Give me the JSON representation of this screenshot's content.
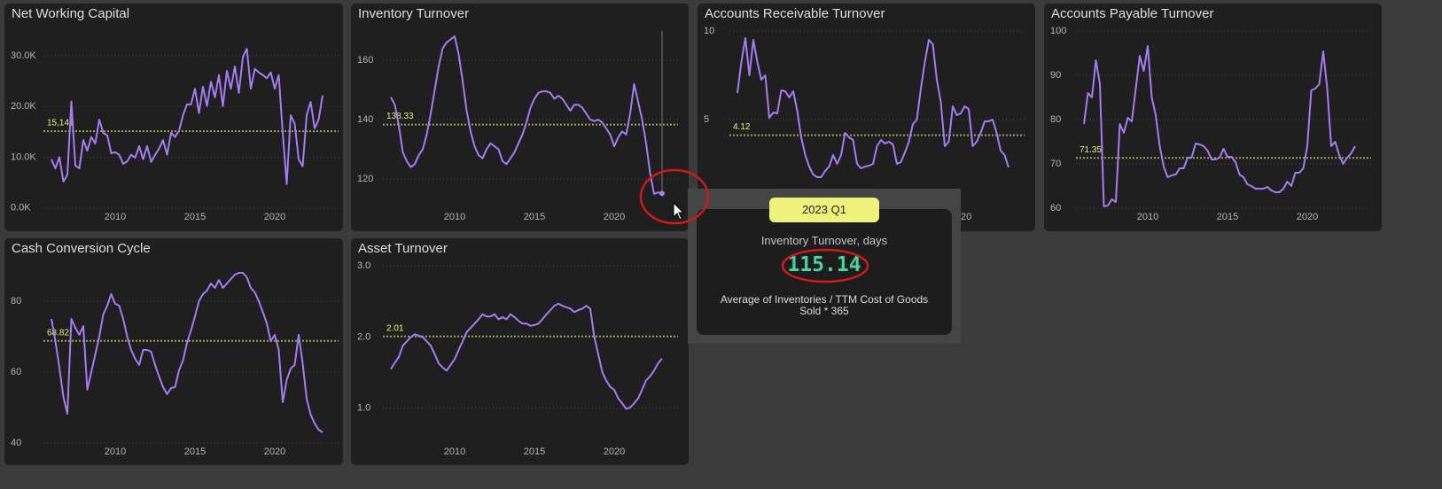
{
  "chart_data": [
    {
      "type": "line",
      "title": "Net Working Capital",
      "color": "#a57cf2",
      "grid": true,
      "xlim": [
        2005.5,
        2024
      ],
      "xticks": [
        2010,
        2015,
        2020
      ],
      "ylim": [
        -1600,
        35400
      ],
      "yticks": [
        {
          "value": 0,
          "label": "0.0K"
        },
        {
          "value": 10000,
          "label": "10.0K"
        },
        {
          "value": 20000,
          "label": "20.0K"
        },
        {
          "value": 30000,
          "label": "30.0K"
        }
      ],
      "average": {
        "value": 15141,
        "label": "15,141"
      },
      "x": [
        2006,
        2006.25,
        2006.5,
        2006.75,
        2007,
        2007.25,
        2007.5,
        2007.75,
        2008,
        2008.25,
        2008.5,
        2008.75,
        2009,
        2009.25,
        2009.5,
        2009.75,
        2010,
        2010.25,
        2010.5,
        2010.75,
        2011,
        2011.25,
        2011.5,
        2011.75,
        2012,
        2012.25,
        2012.5,
        2012.75,
        2013,
        2013.25,
        2013.5,
        2013.75,
        2014,
        2014.25,
        2014.5,
        2014.75,
        2015,
        2015.25,
        2015.5,
        2015.75,
        2016,
        2016.25,
        2016.5,
        2016.75,
        2017,
        2017.25,
        2017.5,
        2017.75,
        2018,
        2018.25,
        2018.5,
        2018.75,
        2019,
        2019.25,
        2019.5,
        2019.75,
        2020,
        2020.25,
        2020.5,
        2020.75,
        2021,
        2021.25,
        2021.5,
        2021.75,
        2022,
        2022.25,
        2022.5,
        2022.75,
        2023
      ],
      "values": [
        9600,
        7800,
        10000,
        5200,
        6500,
        21000,
        8400,
        7800,
        13400,
        11300,
        14000,
        12700,
        17400,
        14800,
        14300,
        10800,
        11000,
        10500,
        8700,
        9200,
        10500,
        9900,
        12200,
        9600,
        12200,
        9100,
        10500,
        11700,
        13400,
        10500,
        14800,
        14000,
        15200,
        18300,
        20400,
        20400,
        23500,
        18700,
        23900,
        20100,
        24900,
        21800,
        26200,
        20100,
        27000,
        23500,
        27900,
        22700,
        29700,
        31400,
        23500,
        27400,
        26700,
        26200,
        25600,
        26700,
        23500,
        26200,
        14800,
        4700,
        18300,
        16600,
        9600,
        8200,
        18300,
        20900,
        15700,
        17400,
        22200
      ]
    },
    {
      "type": "line",
      "title": "Inventory Turnover",
      "color": "#a57cf2",
      "grid": true,
      "xlim": [
        2005.5,
        2024
      ],
      "xticks": [
        2010,
        2015,
        2020
      ],
      "ylim": [
        107.5,
        170.7
      ],
      "yticks": [
        120,
        140,
        160
      ],
      "average": {
        "value": 138.33,
        "label": "138.33"
      },
      "x": [
        2006,
        2006.25,
        2006.5,
        2006.75,
        2007,
        2007.25,
        2007.5,
        2007.75,
        2008,
        2008.25,
        2008.5,
        2008.75,
        2009,
        2009.25,
        2009.5,
        2009.75,
        2010,
        2010.25,
        2010.5,
        2010.75,
        2011,
        2011.25,
        2011.5,
        2011.75,
        2012,
        2012.25,
        2012.5,
        2012.75,
        2013,
        2013.25,
        2013.5,
        2013.75,
        2014,
        2014.25,
        2014.5,
        2014.75,
        2015,
        2015.25,
        2015.5,
        2015.75,
        2016,
        2016.25,
        2016.5,
        2016.75,
        2017,
        2017.25,
        2017.5,
        2017.75,
        2018,
        2018.25,
        2018.5,
        2018.75,
        2019,
        2019.25,
        2019.5,
        2019.75,
        2020,
        2020.25,
        2020.5,
        2020.75,
        2021,
        2021.25,
        2021.5,
        2021.75,
        2022,
        2022.25,
        2022.5,
        2022.75,
        2023
      ],
      "values": [
        147.5,
        145,
        138,
        129,
        126,
        124,
        125,
        128,
        130,
        135,
        142,
        150,
        158,
        164,
        166,
        167,
        168,
        162,
        153,
        143,
        136,
        131,
        128,
        127,
        130,
        132,
        131,
        130,
        126,
        125,
        127,
        129,
        132,
        135,
        139,
        144,
        147,
        149,
        149.5,
        149.5,
        149,
        147,
        148,
        147,
        145,
        143,
        145,
        145,
        144,
        142,
        140,
        139.5,
        140,
        139,
        137,
        135,
        131,
        134,
        136,
        135,
        142,
        152,
        146,
        140,
        132,
        122,
        115,
        115.5,
        115.14
      ]
    },
    {
      "type": "line",
      "title": "Accounts Receivable Turnover",
      "color": "#a57cf2",
      "grid": true,
      "xlim": [
        2005.5,
        2024
      ],
      "xticks": [
        2010,
        2015,
        2020
      ],
      "ylim": [
        -0.45,
        10.15
      ],
      "yticks": [
        5,
        10
      ],
      "average": {
        "value": 4.12,
        "label": "4.12"
      },
      "x": [
        2006,
        2006.25,
        2006.5,
        2006.75,
        2007,
        2007.25,
        2007.5,
        2007.75,
        2008,
        2008.25,
        2008.5,
        2008.75,
        2009,
        2009.25,
        2009.5,
        2009.75,
        2010,
        2010.25,
        2010.5,
        2010.75,
        2011,
        2011.25,
        2011.5,
        2011.75,
        2012,
        2012.25,
        2012.5,
        2012.75,
        2013,
        2013.25,
        2013.5,
        2013.75,
        2014,
        2014.25,
        2014.5,
        2014.75,
        2015,
        2015.25,
        2015.5,
        2015.75,
        2016,
        2016.25,
        2016.5,
        2016.75,
        2017,
        2017.25,
        2017.5,
        2017.75,
        2018,
        2018.25,
        2018.5,
        2018.75,
        2019,
        2019.25,
        2019.5,
        2019.75,
        2020,
        2020.25,
        2020.5,
        2020.75,
        2021,
        2021.25,
        2021.5,
        2021.75,
        2022,
        2022.25,
        2022.5,
        2022.75,
        2023
      ],
      "values": [
        6.5,
        8.25,
        9.6,
        7.5,
        9.5,
        8.25,
        7.25,
        7.5,
        5.1,
        5.4,
        5.35,
        6.65,
        6.6,
        6.25,
        6.6,
        5.5,
        4,
        3,
        2.35,
        1.9,
        1.75,
        1.75,
        2.1,
        2.35,
        3,
        2.5,
        3,
        4.25,
        4,
        3.85,
        2.5,
        2.25,
        2.35,
        2.4,
        2.5,
        3.5,
        3.85,
        3.65,
        3.75,
        3.6,
        2.5,
        2.6,
        3.15,
        3.75,
        4.75,
        5,
        6.75,
        8.25,
        9.5,
        9.25,
        7.25,
        6,
        3.5,
        3.75,
        5.75,
        5.25,
        5.35,
        5.75,
        5.6,
        3.5,
        3.75,
        4.25,
        4.9,
        4.9,
        5,
        4.25,
        3.25,
        3,
        2.3
      ]
    },
    {
      "type": "line",
      "title": "Accounts Payable Turnover",
      "color": "#a57cf2",
      "grid": true,
      "xlim": [
        2005.5,
        2024
      ],
      "xticks": [
        2010,
        2015,
        2020
      ],
      "ylim": [
        58.2,
        100.6
      ],
      "yticks": [
        60,
        70,
        80,
        90,
        100
      ],
      "average": {
        "value": 71.35,
        "label": "71.35"
      },
      "x": [
        2006,
        2006.25,
        2006.5,
        2006.75,
        2007,
        2007.25,
        2007.5,
        2007.75,
        2008,
        2008.25,
        2008.5,
        2008.75,
        2009,
        2009.25,
        2009.5,
        2009.75,
        2010,
        2010.25,
        2010.5,
        2010.75,
        2011,
        2011.25,
        2011.5,
        2011.75,
        2012,
        2012.25,
        2012.5,
        2012.75,
        2013,
        2013.25,
        2013.5,
        2013.75,
        2014,
        2014.25,
        2014.5,
        2014.75,
        2015,
        2015.25,
        2015.5,
        2015.75,
        2016,
        2016.25,
        2016.5,
        2016.75,
        2017,
        2017.25,
        2017.5,
        2017.75,
        2018,
        2018.25,
        2018.5,
        2018.75,
        2019,
        2019.25,
        2019.5,
        2019.75,
        2020,
        2020.25,
        2020.5,
        2020.75,
        2021,
        2021.25,
        2021.5,
        2021.75,
        2022,
        2022.25,
        2022.5,
        2022.75,
        2023
      ],
      "values": [
        79,
        86,
        85,
        93.4,
        88,
        60.4,
        60.6,
        62,
        61.4,
        79,
        77,
        80.4,
        79.6,
        87,
        94.4,
        91,
        96.6,
        85,
        81,
        74,
        69.4,
        67,
        67.4,
        67.6,
        69,
        69,
        71.4,
        71.4,
        74.6,
        74.4,
        74,
        73,
        71,
        71,
        71.4,
        73.4,
        71.6,
        71.6,
        70.4,
        67.6,
        67,
        65.4,
        65,
        64.4,
        64.4,
        64.4,
        64.8,
        64,
        63.6,
        63.6,
        64.4,
        66,
        65,
        68,
        68,
        69,
        74,
        86.6,
        87,
        88,
        95.4,
        87,
        74,
        75,
        72,
        70,
        71.4,
        72.4,
        74
      ]
    },
    {
      "type": "line",
      "title": "Cash Conversion Cycle",
      "color": "#a57cf2",
      "grid": true,
      "xlim": [
        2005.5,
        2024
      ],
      "xticks": [
        2010,
        2015,
        2020
      ],
      "ylim": [
        37.75,
        90.75
      ],
      "yticks": [
        40,
        60,
        80
      ],
      "average": {
        "value": 68.82,
        "label": "68.82"
      },
      "x": [
        2006,
        2006.25,
        2006.5,
        2006.75,
        2007,
        2007.25,
        2007.5,
        2007.75,
        2008,
        2008.25,
        2008.5,
        2008.75,
        2009,
        2009.25,
        2009.5,
        2009.75,
        2010,
        2010.25,
        2010.5,
        2010.75,
        2011,
        2011.25,
        2011.5,
        2011.75,
        2012,
        2012.25,
        2012.5,
        2012.75,
        2013,
        2013.25,
        2013.5,
        2013.75,
        2014,
        2014.25,
        2014.5,
        2014.75,
        2015,
        2015.25,
        2015.5,
        2015.75,
        2016,
        2016.25,
        2016.5,
        2016.75,
        2017,
        2017.25,
        2017.5,
        2017.75,
        2018,
        2018.25,
        2018.5,
        2018.75,
        2019,
        2019.25,
        2019.5,
        2019.75,
        2020,
        2020.25,
        2020.5,
        2020.75,
        2021,
        2021.25,
        2021.5,
        2021.75,
        2022,
        2022.25,
        2022.5,
        2022.75,
        2023
      ],
      "values": [
        75,
        68.75,
        61.25,
        53,
        48.25,
        75,
        72.5,
        70.5,
        73,
        55,
        60,
        65,
        70,
        76.25,
        78.75,
        82,
        79.25,
        78.75,
        75,
        70,
        66.25,
        63.75,
        62,
        66.25,
        66.25,
        65.75,
        62,
        58.75,
        55.75,
        53.75,
        55.5,
        55.75,
        60.5,
        63.25,
        68.25,
        71.75,
        75.75,
        80,
        82,
        83,
        85,
        83.75,
        86,
        83.75,
        85,
        86.25,
        87.5,
        88,
        88,
        86.75,
        83.75,
        82.5,
        80,
        77,
        73.75,
        68.75,
        70.5,
        66.25,
        51.5,
        57.75,
        61,
        62,
        70.5,
        62.5,
        52.5,
        48,
        45.5,
        43.75,
        43
      ]
    },
    {
      "type": "line",
      "title": "Asset Turnover",
      "color": "#a57cf2",
      "grid": true,
      "xlim": [
        2005.5,
        2024
      ],
      "xticks": [
        2010,
        2015,
        2020
      ],
      "ylim": [
        0.4,
        3.04
      ],
      "yticks": [
        {
          "value": 1,
          "label": "1.0"
        },
        {
          "value": 2,
          "label": "2.0"
        },
        {
          "value": 3,
          "label": "3.0"
        }
      ],
      "average": {
        "value": 2.01,
        "label": "2.01"
      },
      "x": [
        2006,
        2006.25,
        2006.5,
        2006.75,
        2007,
        2007.25,
        2007.5,
        2007.75,
        2008,
        2008.25,
        2008.5,
        2008.75,
        2009,
        2009.25,
        2009.5,
        2009.75,
        2010,
        2010.25,
        2010.5,
        2010.75,
        2011,
        2011.25,
        2011.5,
        2011.75,
        2012,
        2012.25,
        2012.5,
        2012.75,
        2013,
        2013.25,
        2013.5,
        2013.75,
        2014,
        2014.25,
        2014.5,
        2014.75,
        2015,
        2015.25,
        2015.5,
        2015.75,
        2016,
        2016.25,
        2016.5,
        2016.75,
        2017,
        2017.25,
        2017.5,
        2017.75,
        2018,
        2018.25,
        2018.5,
        2018.75,
        2019,
        2019.25,
        2019.5,
        2019.75,
        2020,
        2020.25,
        2020.5,
        2020.75,
        2021,
        2021.25,
        2021.5,
        2021.75,
        2022,
        2022.25,
        2022.5,
        2022.75,
        2023
      ],
      "values": [
        1.55,
        1.64,
        1.72,
        1.88,
        1.94,
        2,
        2.04,
        2.02,
        2,
        1.94,
        1.88,
        1.76,
        1.63,
        1.57,
        1.53,
        1.61,
        1.69,
        1.82,
        1.94,
        2.07,
        2.13,
        2.19,
        2.25,
        2.32,
        2.29,
        2.29,
        2.32,
        2.25,
        2.28,
        2.25,
        2.32,
        2.28,
        2.23,
        2.19,
        2.19,
        2.16,
        2.17,
        2.19,
        2.25,
        2.32,
        2.38,
        2.44,
        2.47,
        2.44,
        2.42,
        2.4,
        2.35,
        2.38,
        2.4,
        2.44,
        2.4,
        2,
        1.76,
        1.51,
        1.39,
        1.3,
        1.26,
        1.14,
        1.07,
        0.99,
        1.01,
        1.07,
        1.14,
        1.26,
        1.39,
        1.45,
        1.53,
        1.63,
        1.7
      ]
    }
  ],
  "tooltip": {
    "title": "2023 Q1",
    "label": "Inventory Turnover, days",
    "value": 115.14,
    "description": "Average of Inventories / TTM Cost of Goods Sold * 365"
  }
}
